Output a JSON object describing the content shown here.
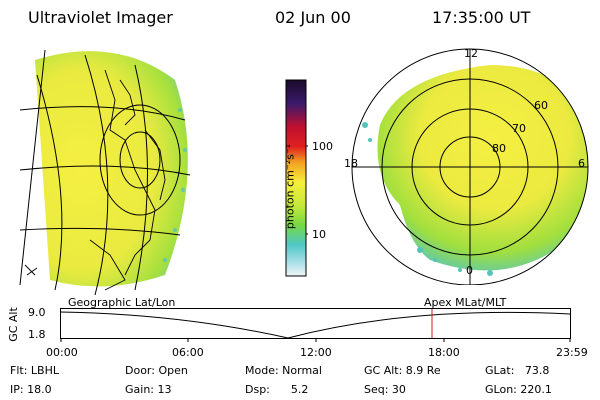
{
  "header": {
    "instrument": "Ultraviolet Imager",
    "date": "02 Jun 00",
    "time": "17:35:00 UT"
  },
  "colorbar": {
    "label": "photon cm⁻²s⁻¹",
    "ticks": [
      "100",
      "10"
    ]
  },
  "polar": {
    "top_label": "12",
    "left_label": "18",
    "right_label": "6",
    "bottom_label": "0",
    "ring_labels": [
      "60",
      "70",
      "80"
    ]
  },
  "frame_labels": {
    "left": "Geographic Lat/Lon",
    "right": "Apex MLat/MLT"
  },
  "altitude_plot": {
    "axis_title": "GC Alt",
    "y_ticks": [
      "9.0",
      "1.8"
    ],
    "x_ticks": [
      "00:00",
      "06:00",
      "12:00",
      "18:00",
      "23:59"
    ]
  },
  "status": {
    "flt": "Flt: LBHL",
    "ip": "IP: 18.0",
    "door": "Door: Open",
    "gain": "Gain: 13",
    "mode": "Mode: Normal",
    "dsp": "Dsp:      5.2",
    "gcalt": "GC Alt: 8.9 Re",
    "seq": "Seq: 30",
    "glat": "GLat:   73.8",
    "glon": "GLon: 220.1"
  },
  "colors": {
    "orbit_marker": "#d11a1a",
    "aurora_low": "#f2ee3c",
    "aurora_mid": "#9be23c",
    "aurora_edge": "#4bc9c9"
  }
}
